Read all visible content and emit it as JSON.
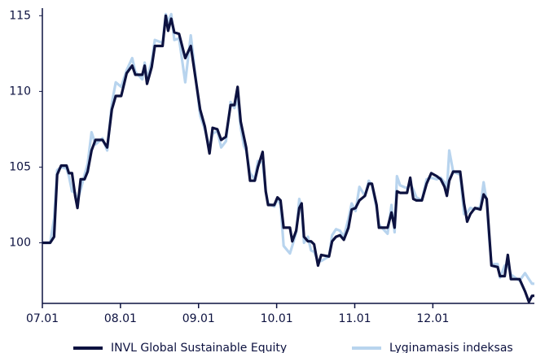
{
  "chart_data": {
    "type": "line",
    "x": [
      0,
      0.1,
      0.15,
      0.19,
      0.24,
      0.31,
      0.34,
      0.38,
      0.42,
      0.45,
      0.49,
      0.54,
      0.58,
      0.63,
      0.68,
      0.77,
      0.83,
      0.89,
      0.94,
      1.01,
      1.08,
      1.15,
      1.19,
      1.28,
      1.31,
      1.34,
      1.4,
      1.44,
      1.54,
      1.58,
      1.61,
      1.65,
      1.69,
      1.75,
      1.83,
      1.9,
      2.02,
      2.08,
      2.14,
      2.18,
      2.24,
      2.29,
      2.35,
      2.41,
      2.46,
      2.5,
      2.54,
      2.58,
      2.61,
      2.66,
      2.72,
      2.76,
      2.82,
      2.86,
      2.89,
      2.97,
      3.01,
      3.05,
      3.09,
      3.17,
      3.2,
      3.25,
      3.29,
      3.32,
      3.35,
      3.4,
      3.44,
      3.48,
      3.53,
      3.57,
      3.67,
      3.71,
      3.76,
      3.81,
      3.86,
      3.92,
      3.96,
      4.01,
      4.06,
      4.13,
      4.18,
      4.22,
      4.28,
      4.31,
      4.42,
      4.47,
      4.51,
      4.54,
      4.58,
      4.67,
      4.71,
      4.75,
      4.79,
      4.86,
      4.92,
      4.98,
      5.05,
      5.1,
      5.15,
      5.18,
      5.21,
      5.26,
      5.35,
      5.4,
      5.44,
      5.48,
      5.54,
      5.61,
      5.65,
      5.69,
      5.72,
      5.75,
      5.83,
      5.86,
      5.92,
      5.96,
      6.0,
      6.11,
      6.18,
      6.23,
      6.27,
      6.3
    ],
    "series": [
      {
        "name": "INVL Global Sustainable Equity",
        "color": "#0d1240",
        "width": 3.2,
        "values": [
          100,
          100,
          100.4,
          104.5,
          105.1,
          105.1,
          104.6,
          104.6,
          103.1,
          102.3,
          104.2,
          104.2,
          104.7,
          106.1,
          106.8,
          106.8,
          106.3,
          108.8,
          109.7,
          109.7,
          111.2,
          111.7,
          111.1,
          111.1,
          111.7,
          110.5,
          111.6,
          113,
          113,
          115,
          114,
          114.8,
          113.9,
          113.8,
          112.2,
          113,
          108.8,
          107.7,
          105.9,
          107.6,
          107.5,
          106.8,
          107,
          109.1,
          109.1,
          110.3,
          108,
          107,
          106.3,
          104.1,
          104.1,
          105,
          106,
          103.4,
          102.5,
          102.5,
          103,
          102.8,
          101,
          101,
          100.1,
          100.8,
          102.3,
          102.6,
          100.4,
          100.1,
          100.1,
          99.9,
          98.5,
          99.2,
          99.1,
          100.1,
          100.4,
          100.5,
          100.2,
          101,
          102.2,
          102.3,
          102.8,
          103.1,
          103.9,
          103.9,
          102.5,
          101,
          101,
          102,
          101,
          103.4,
          103.3,
          103.3,
          104.3,
          102.9,
          102.8,
          102.8,
          103.9,
          104.6,
          104.4,
          104.2,
          103.7,
          103.1,
          104.1,
          104.7,
          104.7,
          102.6,
          101.4,
          101.9,
          102.3,
          102.2,
          103.2,
          102.9,
          100.7,
          98.5,
          98.4,
          97.8,
          97.8,
          99.2,
          97.6,
          97.6,
          96.8,
          96.1,
          96.5,
          96.5
        ]
      },
      {
        "name": "Lyginamasis indeksas",
        "color": "#b8d4ee",
        "width": 3.2,
        "values": [
          100,
          100,
          101.6,
          104.8,
          105,
          104.9,
          104.4,
          103.4,
          103.3,
          102.8,
          103.5,
          104.5,
          105.2,
          107.3,
          106.5,
          106.9,
          106.1,
          109.2,
          110.6,
          110.3,
          111.4,
          112.2,
          111.3,
          110.8,
          111.9,
          110.8,
          112,
          113.4,
          113.2,
          115.1,
          114.6,
          115.1,
          113.4,
          113.5,
          110.6,
          113.7,
          108.4,
          107.5,
          106.3,
          107.2,
          107.4,
          106.3,
          106.7,
          109.3,
          108.9,
          109.6,
          107.6,
          106.4,
          106.1,
          104.6,
          104.2,
          105.4,
          105.3,
          103.4,
          102.6,
          102.4,
          102.9,
          102.5,
          99.8,
          99.3,
          99.8,
          100.7,
          102.9,
          102.2,
          100,
          100.4,
          99.5,
          99.4,
          98.8,
          98.8,
          99.1,
          100.5,
          100.9,
          100.8,
          100.4,
          101.6,
          102.6,
          102.1,
          103.7,
          103.1,
          104.1,
          103.8,
          102.3,
          101.2,
          100.6,
          102.5,
          100.7,
          104.4,
          103.8,
          103.6,
          103.9,
          103.5,
          103,
          102.8,
          104.2,
          104.3,
          104.2,
          104.3,
          104,
          103.4,
          106.1,
          104.7,
          104.5,
          101.9,
          102,
          102.3,
          102.2,
          102.4,
          104,
          102.7,
          100.4,
          98.6,
          98.6,
          97.7,
          98.5,
          98.6,
          97.9,
          97.5,
          98,
          97.6,
          97.3,
          97.3
        ]
      }
    ],
    "xlim": [
      0,
      6.3
    ],
    "xticks": [
      {
        "value": 0,
        "label": "07.01"
      },
      {
        "value": 1,
        "label": "08.01"
      },
      {
        "value": 2,
        "label": "09.01"
      },
      {
        "value": 3,
        "label": "10.01"
      },
      {
        "value": 4,
        "label": "11.01"
      },
      {
        "value": 5,
        "label": "12.01"
      }
    ],
    "ylim": [
      96,
      115.5
    ],
    "yticks": [
      100,
      105,
      110,
      115
    ]
  }
}
